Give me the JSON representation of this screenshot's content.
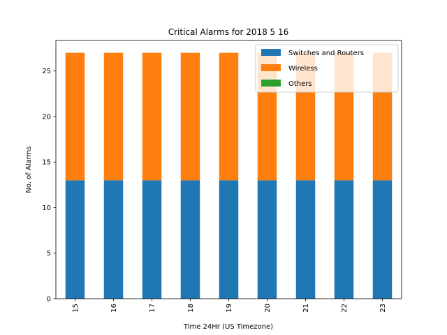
{
  "chart_data": {
    "type": "bar",
    "stacked": true,
    "title": "Critical Alarms for 2018 5 16",
    "xlabel": "Time 24Hr (US Timezone)",
    "ylabel": "No. of Alarms",
    "categories": [
      "15",
      "16",
      "17",
      "18",
      "19",
      "20",
      "21",
      "22",
      "23"
    ],
    "series": [
      {
        "name": "Switches and Routers",
        "color": "#1f77b4",
        "values": [
          13,
          13,
          13,
          13,
          13,
          13,
          13,
          13,
          13
        ]
      },
      {
        "name": "Wireless",
        "color": "#ff7f0e",
        "values": [
          14,
          14,
          14,
          14,
          14,
          14,
          14,
          14,
          14
        ]
      },
      {
        "name": "Others",
        "color": "#2ca02c",
        "values": [
          0,
          0,
          0,
          0,
          0,
          0,
          0,
          0,
          0
        ]
      }
    ],
    "yticks": [
      0,
      5,
      10,
      15,
      20,
      25
    ],
    "ylim": [
      0,
      28.35
    ],
    "x_tick_rotation": "vertical",
    "legend_position": "upper-right",
    "grid": false
  }
}
